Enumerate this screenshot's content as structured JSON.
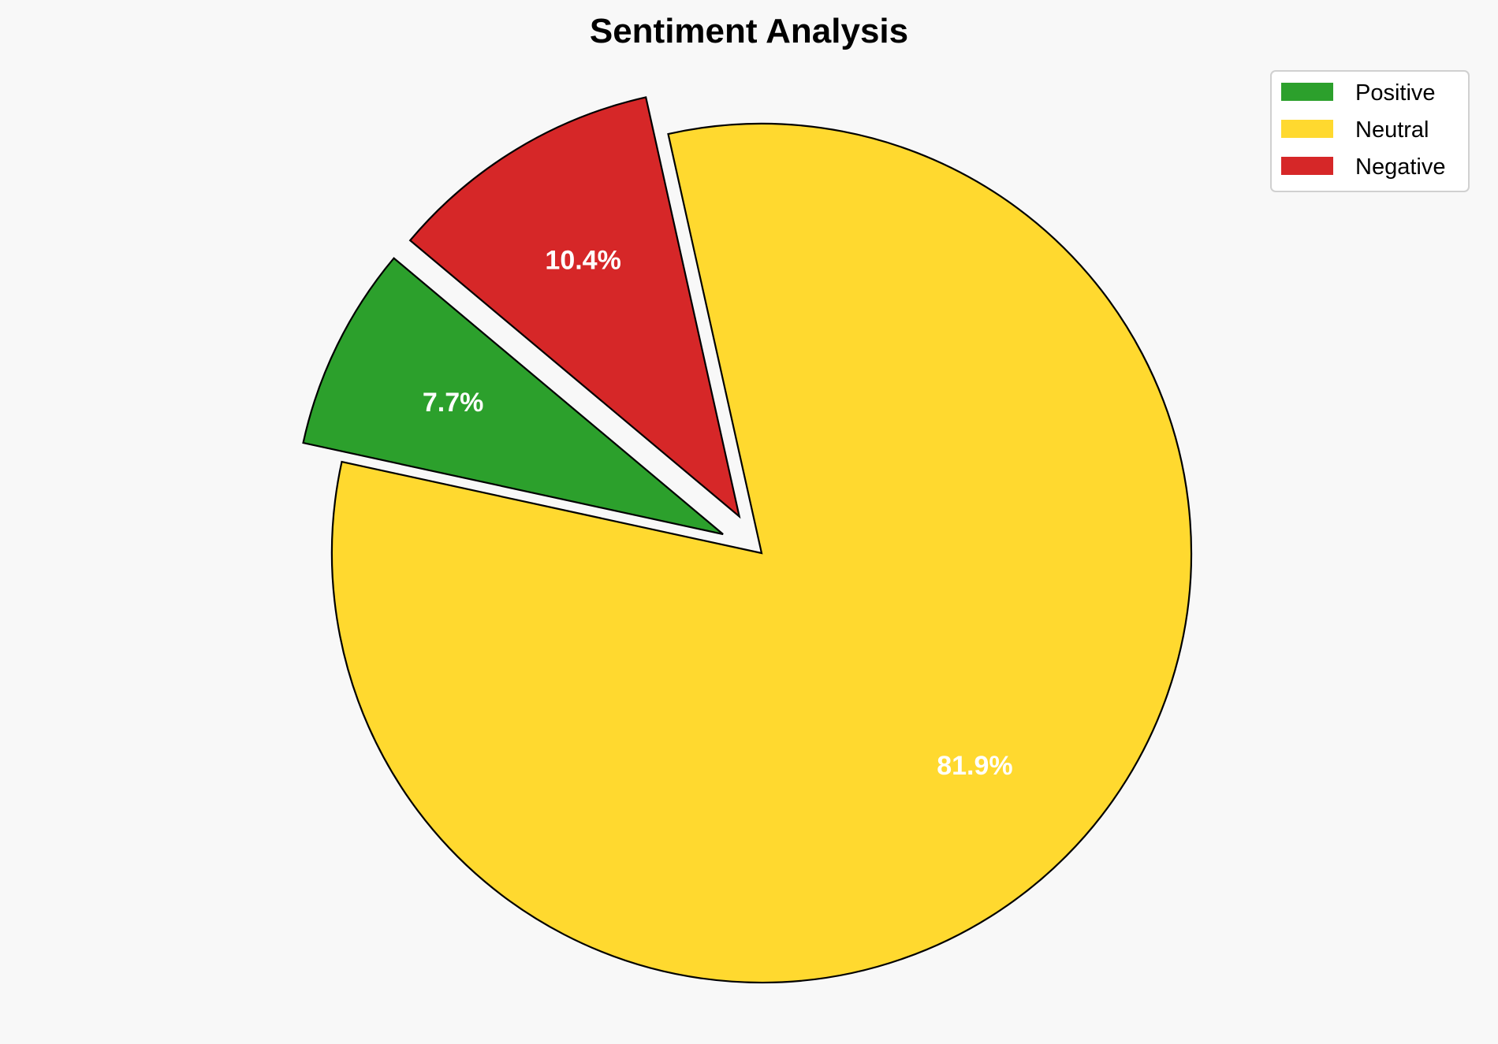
{
  "chart_data": {
    "type": "pie",
    "title": "Sentiment Analysis",
    "categories": [
      "Positive",
      "Neutral",
      "Negative"
    ],
    "values": [
      7.7,
      81.9,
      10.4
    ],
    "labels": [
      "7.7%",
      "81.9%",
      "10.4%"
    ],
    "colors": [
      "#2ca02c",
      "#ffd92f",
      "#d62728"
    ],
    "explode": [
      0.1,
      0,
      0.1
    ],
    "start_angle": 140,
    "counterclockwise": true,
    "edge_color": "#000000",
    "legend_placement": "top-right",
    "background": "#f8f8f8"
  }
}
